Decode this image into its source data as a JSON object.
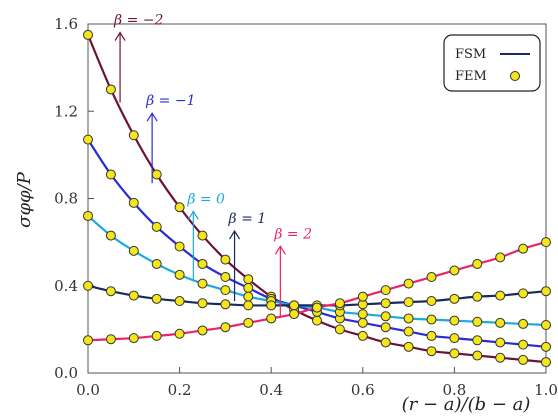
{
  "chart_data": {
    "type": "line",
    "xlabel": "(r − a)/(b − a)",
    "ylabel": "σφφ/P",
    "xlim": [
      0,
      1
    ],
    "ylim": [
      0,
      1.6
    ],
    "xticks": [
      "0.0",
      "0.2",
      "0.4",
      "0.6",
      "0.8",
      "1.0"
    ],
    "yticks": [
      "0.0",
      "0.4",
      "0.8",
      "1.2",
      "1.6"
    ],
    "legend": {
      "position": "top-right",
      "entries": [
        "FSM",
        "FEM"
      ]
    },
    "grid": false,
    "series": [
      {
        "name": "β = −2",
        "color": "#6b1238",
        "x": [
          0,
          0.05,
          0.1,
          0.15,
          0.2,
          0.25,
          0.3,
          0.35,
          0.4,
          0.45,
          0.5,
          0.55,
          0.6,
          0.65,
          0.7,
          0.75,
          0.8,
          0.85,
          0.9,
          0.95,
          1.0
        ],
        "y": [
          1.55,
          1.3,
          1.09,
          0.91,
          0.76,
          0.63,
          0.52,
          0.43,
          0.35,
          0.29,
          0.24,
          0.2,
          0.17,
          0.14,
          0.12,
          0.1,
          0.09,
          0.08,
          0.07,
          0.06,
          0.05
        ]
      },
      {
        "name": "β = −1",
        "color": "#2a2ad6",
        "x": [
          0,
          0.05,
          0.1,
          0.15,
          0.2,
          0.25,
          0.3,
          0.35,
          0.4,
          0.45,
          0.5,
          0.55,
          0.6,
          0.65,
          0.7,
          0.75,
          0.8,
          0.85,
          0.9,
          0.95,
          1.0
        ],
        "y": [
          1.07,
          0.91,
          0.78,
          0.67,
          0.58,
          0.5,
          0.44,
          0.39,
          0.34,
          0.31,
          0.28,
          0.25,
          0.23,
          0.21,
          0.19,
          0.17,
          0.16,
          0.15,
          0.14,
          0.13,
          0.12
        ]
      },
      {
        "name": "β = 0",
        "color": "#1ea8e0",
        "x": [
          0,
          0.05,
          0.1,
          0.15,
          0.2,
          0.25,
          0.3,
          0.35,
          0.4,
          0.45,
          0.5,
          0.55,
          0.6,
          0.65,
          0.7,
          0.75,
          0.8,
          0.85,
          0.9,
          0.95,
          1.0
        ],
        "y": [
          0.72,
          0.63,
          0.56,
          0.5,
          0.45,
          0.41,
          0.38,
          0.35,
          0.33,
          0.31,
          0.3,
          0.28,
          0.27,
          0.26,
          0.25,
          0.245,
          0.24,
          0.235,
          0.23,
          0.225,
          0.22
        ]
      },
      {
        "name": "β = 1",
        "color": "#1a2a5c",
        "x": [
          0,
          0.05,
          0.1,
          0.15,
          0.2,
          0.25,
          0.3,
          0.35,
          0.4,
          0.45,
          0.5,
          0.55,
          0.6,
          0.65,
          0.7,
          0.75,
          0.8,
          0.85,
          0.9,
          0.95,
          1.0
        ],
        "y": [
          0.4,
          0.375,
          0.355,
          0.34,
          0.33,
          0.32,
          0.315,
          0.31,
          0.31,
          0.31,
          0.31,
          0.31,
          0.315,
          0.32,
          0.325,
          0.33,
          0.34,
          0.35,
          0.355,
          0.365,
          0.375
        ]
      },
      {
        "name": "β = 2",
        "color": "#e8246a",
        "x": [
          0,
          0.05,
          0.1,
          0.15,
          0.2,
          0.25,
          0.3,
          0.35,
          0.4,
          0.45,
          0.5,
          0.55,
          0.6,
          0.65,
          0.7,
          0.75,
          0.8,
          0.85,
          0.9,
          0.95,
          1.0
        ],
        "y": [
          0.15,
          0.155,
          0.16,
          0.17,
          0.18,
          0.195,
          0.21,
          0.23,
          0.25,
          0.27,
          0.3,
          0.32,
          0.35,
          0.38,
          0.41,
          0.44,
          0.47,
          0.5,
          0.53,
          0.57,
          0.6
        ]
      }
    ],
    "annotations": [
      {
        "text": "β = −2",
        "x": 0.07,
        "y": 1.24,
        "color": "#6b1238"
      },
      {
        "text": "β = −1",
        "x": 0.14,
        "y": 0.87,
        "color": "#2a2ad6"
      },
      {
        "text": "β = 0",
        "x": 0.23,
        "y": 0.42,
        "color": "#1ea8e0"
      },
      {
        "text": "β = 1",
        "x": 0.32,
        "y": 0.33,
        "color": "#1a2a5c"
      },
      {
        "text": "β = 2",
        "x": 0.42,
        "y": 0.26,
        "color": "#e8246a"
      }
    ]
  },
  "colors": {
    "fem_marker": "#f5e61a",
    "fem_marker_edge": "#333333",
    "axis": "#555555"
  }
}
